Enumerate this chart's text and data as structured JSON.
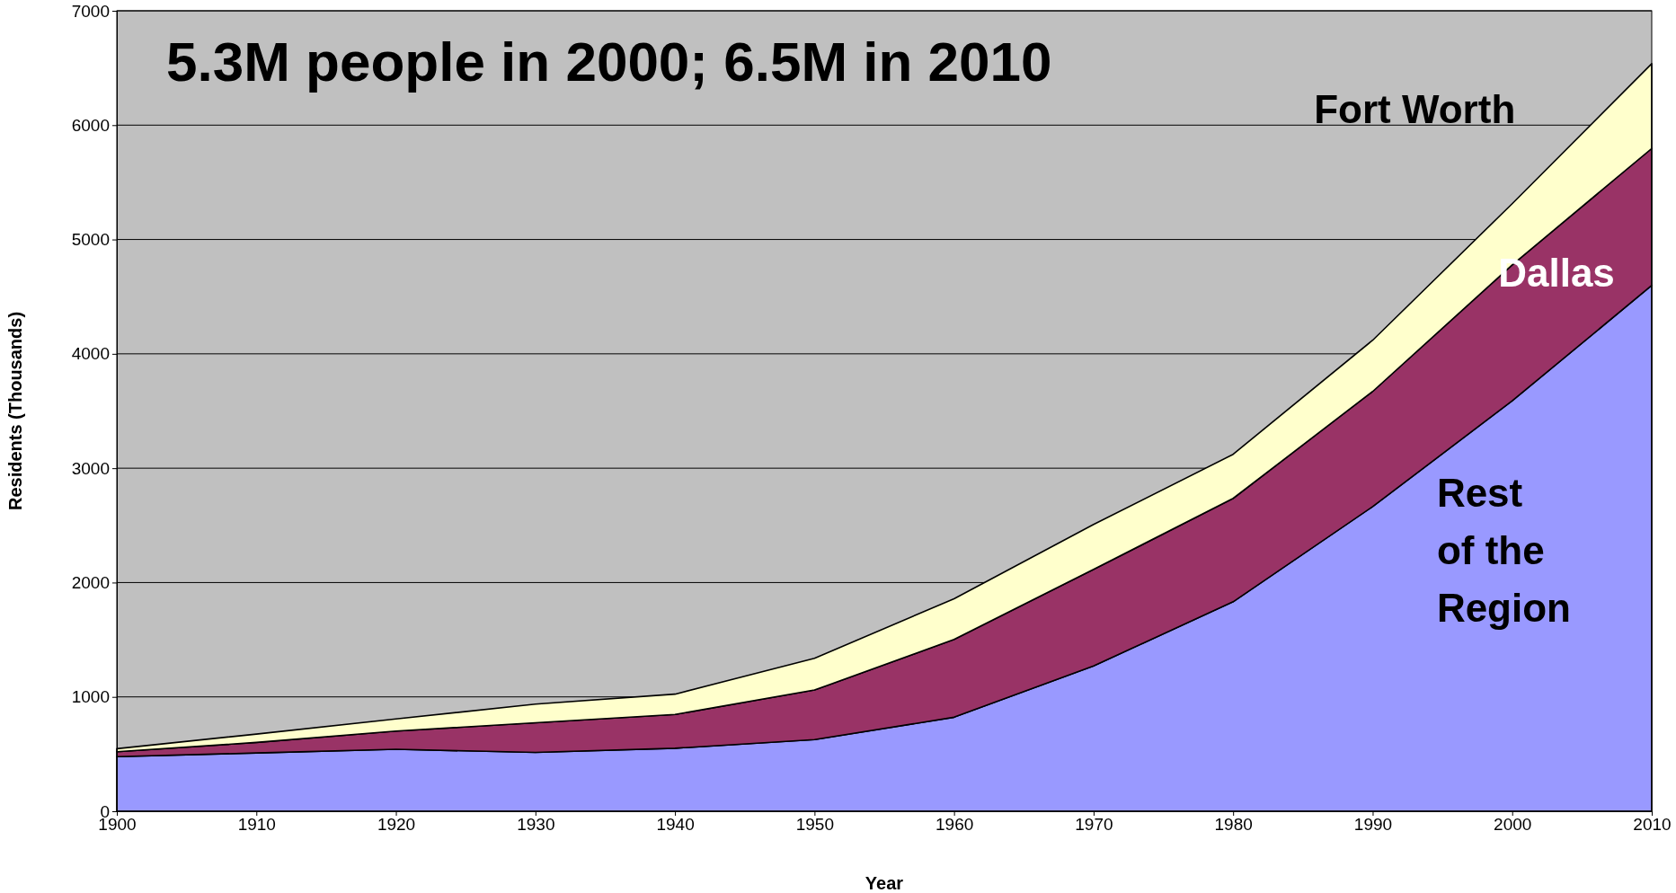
{
  "chart_data": {
    "type": "area",
    "stacked": true,
    "title": "5.3M people in 2000; 6.5M in 2010",
    "xlabel": "Year",
    "ylabel": "Residents (Thousands)",
    "x": [
      1900,
      1910,
      1920,
      1930,
      1940,
      1950,
      1960,
      1970,
      1980,
      1990,
      2000,
      2010
    ],
    "series": [
      {
        "name": "Rest of the Region",
        "color": "#9999ff",
        "values": [
          477,
          510,
          542,
          514,
          551,
          626,
          822,
          1271,
          1832,
          2664,
          3589,
          4598
        ]
      },
      {
        "name": "Dallas",
        "color": "#993366",
        "values": [
          43,
          92,
          159,
          260,
          295,
          434,
          680,
          844,
          904,
          1007,
          1189,
          1198
        ]
      },
      {
        "name": "Fort Worth",
        "color": "#ffffcc",
        "values": [
          27,
          73,
          106,
          163,
          178,
          278,
          356,
          393,
          385,
          448,
          535,
          741
        ]
      }
    ],
    "xlim": [
      1900,
      2010
    ],
    "xticks": [
      1900,
      1910,
      1920,
      1930,
      1940,
      1950,
      1960,
      1970,
      1980,
      1990,
      2000,
      2010
    ],
    "ylim": [
      0,
      7000
    ],
    "yticks": [
      0,
      1000,
      2000,
      3000,
      4000,
      5000,
      6000,
      7000
    ],
    "grid": "y",
    "legend": false
  }
}
